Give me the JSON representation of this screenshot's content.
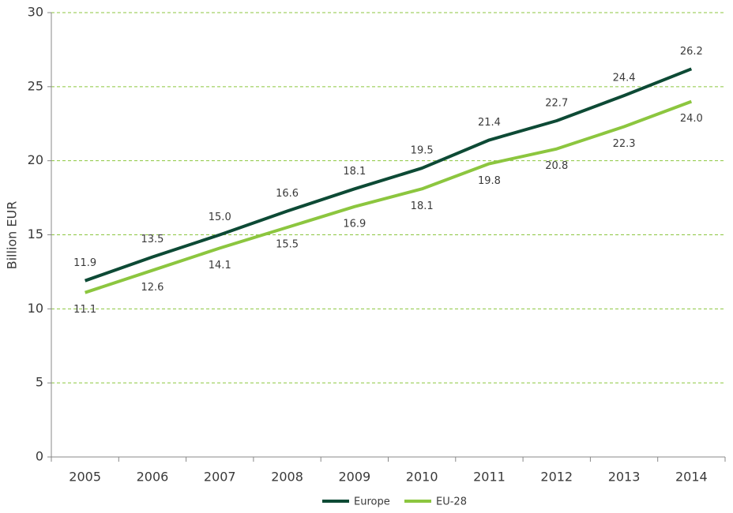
{
  "chart_data": {
    "type": "line",
    "ylabel": "Billion EUR",
    "categories": [
      "2005",
      "2006",
      "2007",
      "2008",
      "2009",
      "2010",
      "2011",
      "2012",
      "2013",
      "2014"
    ],
    "series": [
      {
        "name": "Europe",
        "color": "#0d4a35",
        "values": [
          11.9,
          13.5,
          15.0,
          16.6,
          18.1,
          19.5,
          21.4,
          22.7,
          24.4,
          26.2
        ],
        "value_labels": [
          "11.9",
          "13.5",
          "15.0",
          "16.6",
          "18.1",
          "19.5",
          "21.4",
          "22.7",
          "24.4",
          "26.2"
        ]
      },
      {
        "name": "EU-28",
        "color": "#8cc63f",
        "values": [
          11.1,
          12.6,
          14.1,
          15.5,
          16.9,
          18.1,
          19.8,
          20.8,
          22.3,
          24.0
        ],
        "value_labels": [
          "11.1",
          "12.6",
          "14.1",
          "15.5",
          "16.9",
          "18.1",
          "19.8",
          "20.8",
          "22.3",
          "24.0"
        ]
      }
    ],
    "ylim": [
      0,
      30
    ],
    "yticks": [
      0,
      5,
      10,
      15,
      20,
      25,
      30
    ],
    "grid": true,
    "legend": "bottom"
  }
}
